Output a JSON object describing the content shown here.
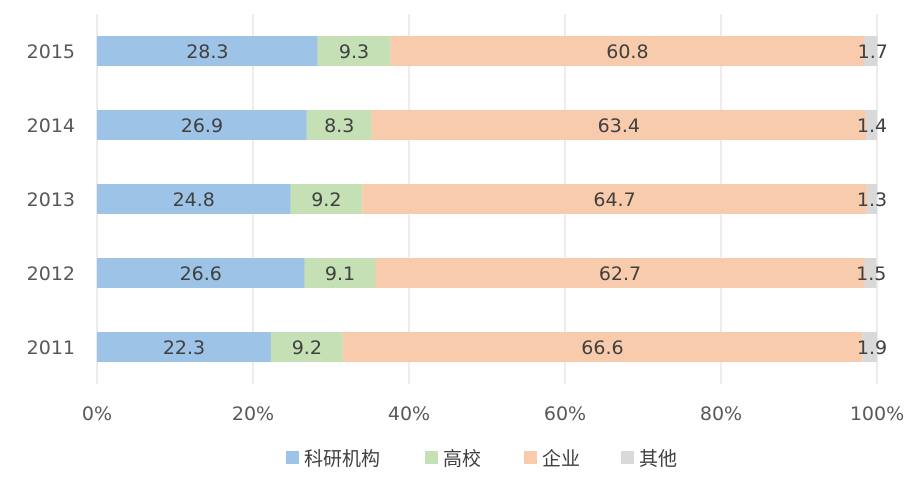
{
  "chart_data": {
    "type": "bar",
    "orientation": "horizontal",
    "stacked": "percent",
    "title": "",
    "xlabel": "",
    "ylabel": "",
    "xlim": [
      0,
      100
    ],
    "x_ticks": [
      "0%",
      "20%",
      "40%",
      "60%",
      "80%",
      "100%"
    ],
    "grid": "vertical",
    "legend_position": "bottom",
    "categories": [
      "2015",
      "2014",
      "2013",
      "2012",
      "2011"
    ],
    "series": [
      {
        "name": "科研机构",
        "color": "#9dc3e6",
        "values": [
          28.3,
          26.9,
          24.8,
          26.6,
          22.3
        ]
      },
      {
        "name": "高校",
        "color": "#c5e0b4",
        "values": [
          9.3,
          8.3,
          9.2,
          9.1,
          9.2
        ]
      },
      {
        "name": "企业",
        "color": "#f8cbad",
        "values": [
          60.8,
          63.4,
          64.7,
          62.7,
          66.6
        ]
      },
      {
        "name": "其他",
        "color": "#d9d9d9",
        "values": [
          1.7,
          1.4,
          1.3,
          1.5,
          1.9
        ]
      }
    ],
    "data_labels": [
      [
        "28.3",
        "26.9",
        "24.8",
        "26.6",
        "22.3"
      ],
      [
        "9.3",
        "8.3",
        "9.2",
        "9.1",
        "9.2"
      ],
      [
        "60.8",
        "63.4",
        "64.7",
        "62.7",
        "66.6"
      ],
      [
        "1.7",
        "1.4",
        "1.3",
        "1.5",
        "1.9"
      ]
    ]
  }
}
